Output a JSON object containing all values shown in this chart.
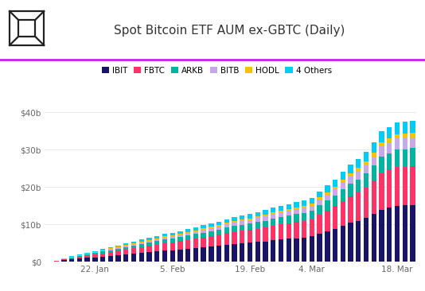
{
  "title": "Spot Bitcoin ETF AUM ex-GBTC (Daily)",
  "colors": {
    "IBIT": "#1a1466",
    "FBTC": "#ff3366",
    "ARKB": "#00b4a0",
    "BITB": "#c8a8e8",
    "HODL": "#f5c400",
    "4 Others": "#00ccf5"
  },
  "ytick_labels": [
    "$0",
    "$10b",
    "$20b",
    "$30b",
    "$40b"
  ],
  "xtick_labels": [
    "22. Jan",
    "5. Feb",
    "19. Feb",
    "4. Mar",
    "18. Mar"
  ],
  "background": "#ffffff",
  "grid_color": "#e8e8e8",
  "separator_color": "#cc00ff",
  "series_names": [
    "IBIT",
    "FBTC",
    "ARKB",
    "BITB",
    "HODL",
    "4 Others"
  ],
  "n_bars": 48,
  "data": {
    "IBIT": [
      0.1,
      0.18,
      0.45,
      0.65,
      0.85,
      1.05,
      1.25,
      1.45,
      1.65,
      1.85,
      2.05,
      2.25,
      2.45,
      2.65,
      2.85,
      3.05,
      3.15,
      3.35,
      3.55,
      3.75,
      3.95,
      4.15,
      4.35,
      4.6,
      4.8,
      5.0,
      5.1,
      5.3,
      5.5,
      5.75,
      5.95,
      6.15,
      6.35,
      6.55,
      6.8,
      7.6,
      8.2,
      8.9,
      9.7,
      10.4,
      11.0,
      11.8,
      12.8,
      14.0,
      14.5,
      15.0,
      15.1,
      15.2
    ],
    "FBTC": [
      0.04,
      0.08,
      0.25,
      0.35,
      0.48,
      0.58,
      0.72,
      0.86,
      1.0,
      1.12,
      1.25,
      1.38,
      1.52,
      1.66,
      1.8,
      1.94,
      2.04,
      2.18,
      2.32,
      2.46,
      2.6,
      2.74,
      2.88,
      3.06,
      3.2,
      3.34,
      3.44,
      3.58,
      3.72,
      3.9,
      4.04,
      4.18,
      4.32,
      4.46,
      4.62,
      5.1,
      5.55,
      6.0,
      6.6,
      7.15,
      7.6,
      8.15,
      8.9,
      9.7,
      10.0,
      10.35,
      10.35,
      10.45
    ],
    "ARKB": [
      0.015,
      0.04,
      0.12,
      0.18,
      0.25,
      0.31,
      0.38,
      0.44,
      0.51,
      0.57,
      0.64,
      0.7,
      0.77,
      0.83,
      0.9,
      0.97,
      1.02,
      1.08,
      1.15,
      1.22,
      1.28,
      1.35,
      1.41,
      1.5,
      1.56,
      1.62,
      1.67,
      1.73,
      1.8,
      1.88,
      1.94,
      2.0,
      2.07,
      2.14,
      2.21,
      2.43,
      2.62,
      2.8,
      3.06,
      3.28,
      3.45,
      3.67,
      4.01,
      4.38,
      4.5,
      4.67,
      4.67,
      4.72
    ],
    "BITB": [
      0.008,
      0.02,
      0.08,
      0.11,
      0.15,
      0.19,
      0.23,
      0.27,
      0.31,
      0.35,
      0.39,
      0.43,
      0.47,
      0.51,
      0.55,
      0.59,
      0.62,
      0.66,
      0.7,
      0.74,
      0.78,
      0.82,
      0.86,
      0.92,
      0.96,
      1.0,
      1.03,
      1.07,
      1.11,
      1.16,
      1.2,
      1.24,
      1.28,
      1.32,
      1.36,
      1.5,
      1.62,
      1.74,
      1.9,
      2.04,
      2.15,
      2.28,
      2.5,
      2.73,
      2.81,
      2.91,
      2.91,
      2.94
    ],
    "HODL": [
      0.004,
      0.008,
      0.03,
      0.05,
      0.07,
      0.08,
      0.1,
      0.11,
      0.13,
      0.15,
      0.17,
      0.18,
      0.2,
      0.21,
      0.23,
      0.24,
      0.26,
      0.27,
      0.29,
      0.3,
      0.32,
      0.33,
      0.35,
      0.37,
      0.39,
      0.4,
      0.42,
      0.44,
      0.46,
      0.48,
      0.49,
      0.51,
      0.52,
      0.54,
      0.56,
      0.61,
      0.67,
      0.72,
      0.79,
      0.85,
      0.89,
      0.95,
      1.04,
      1.14,
      1.17,
      1.21,
      1.21,
      1.22
    ],
    "4 Others": [
      0.015,
      0.03,
      0.1,
      0.14,
      0.18,
      0.22,
      0.26,
      0.31,
      0.35,
      0.39,
      0.43,
      0.47,
      0.52,
      0.56,
      0.6,
      0.64,
      0.68,
      0.72,
      0.76,
      0.81,
      0.85,
      0.89,
      0.93,
      1.0,
      1.04,
      1.08,
      1.12,
      1.16,
      1.21,
      1.26,
      1.3,
      1.34,
      1.38,
      1.43,
      1.48,
      1.63,
      1.76,
      1.89,
      2.07,
      2.22,
      2.33,
      2.48,
      2.72,
      2.97,
      3.05,
      3.16,
      3.16,
      3.19
    ]
  }
}
